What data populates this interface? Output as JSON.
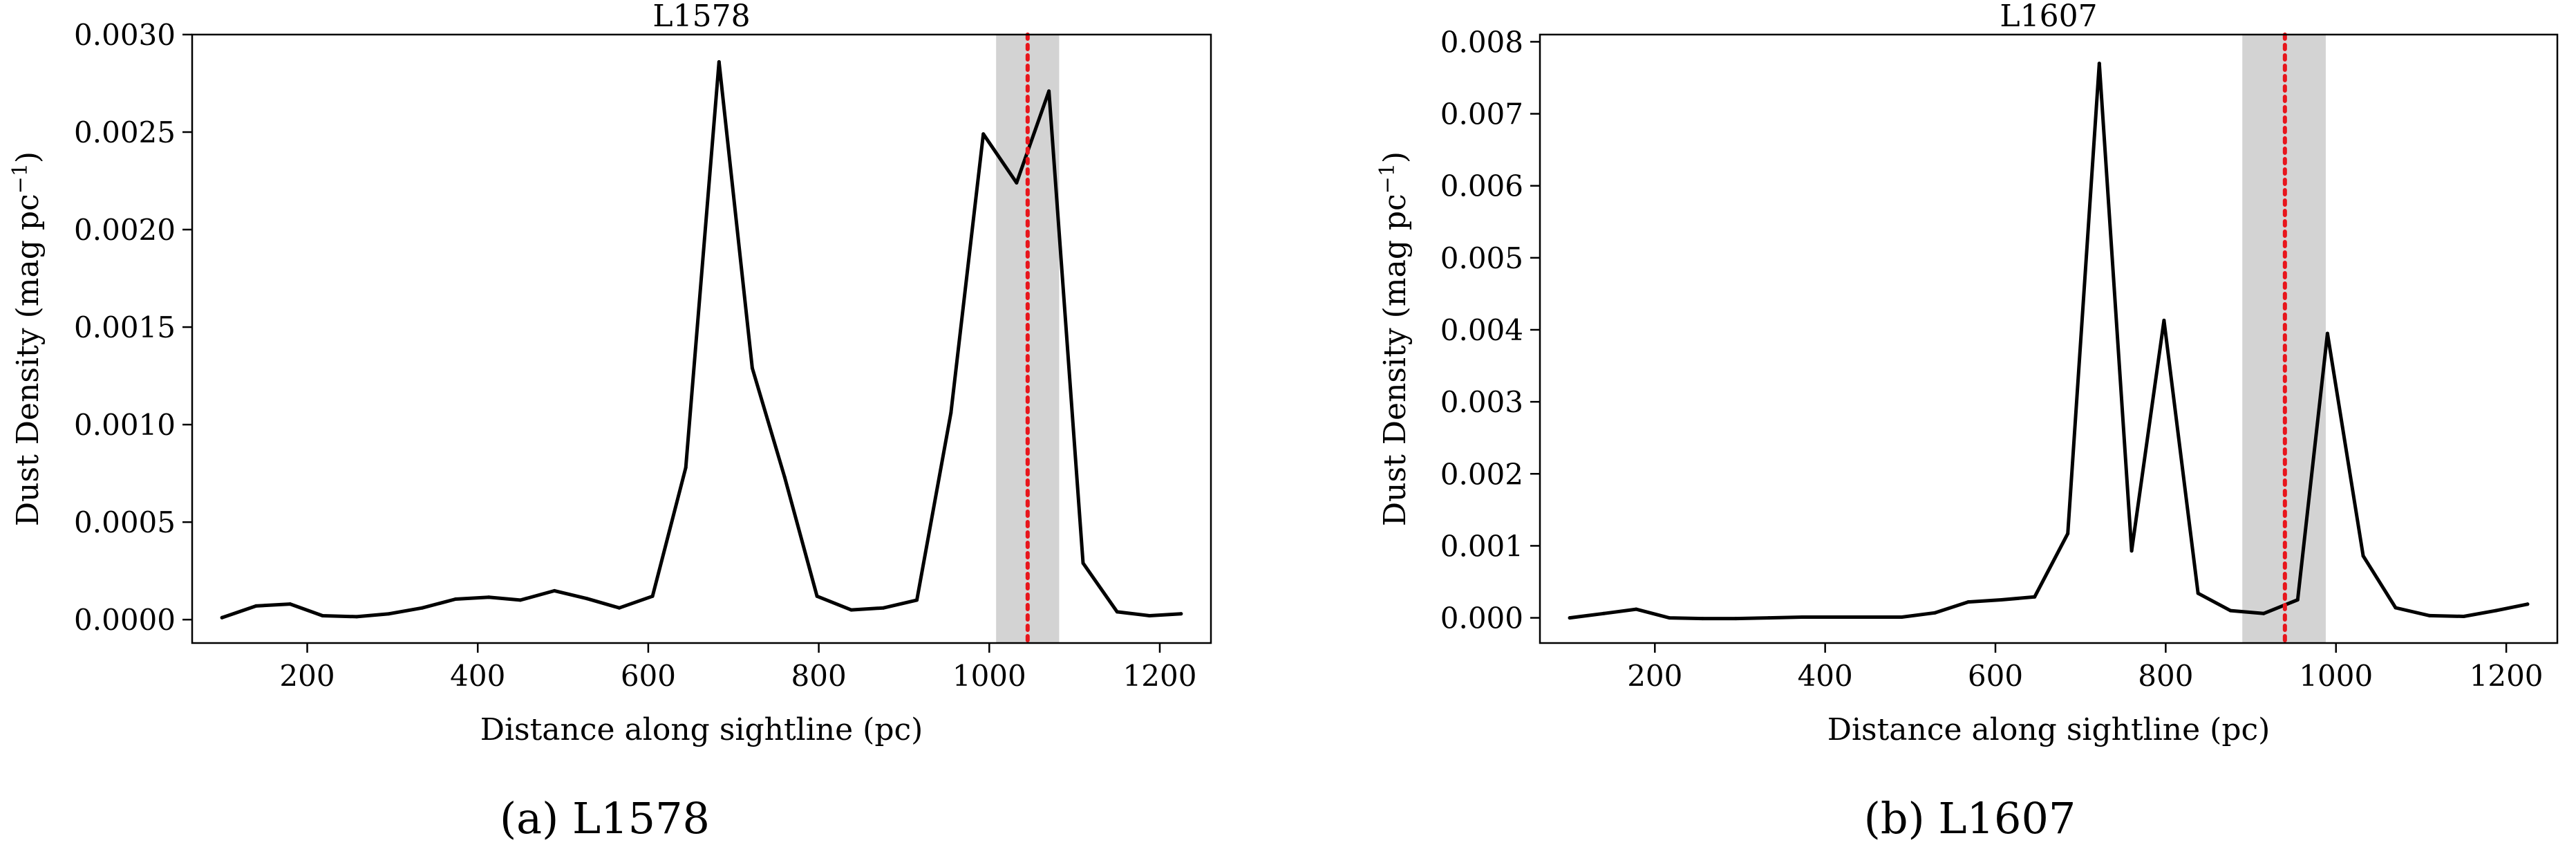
{
  "chart_data": [
    {
      "type": "line",
      "title": "L1578",
      "caption": "(a) L1578",
      "xlabel": "Distance along sightline (pc)",
      "ylabel": "Dust Density (mag pc",
      "ylabel_exp": "−1",
      "ylabel_close": ")",
      "xlim": [
        65,
        1260
      ],
      "ylim": [
        -0.00012,
        0.003
      ],
      "xticks": [
        200,
        400,
        600,
        800,
        1000,
        1200
      ],
      "xtick_labels": [
        "200",
        "400",
        "600",
        "800",
        "1000",
        "1200"
      ],
      "yticks": [
        0.0,
        0.0005,
        0.001,
        0.0015,
        0.002,
        0.0025,
        0.003
      ],
      "ytick_labels": [
        "0.0000",
        "0.0005",
        "0.0010",
        "0.0015",
        "0.0020",
        "0.0025",
        "0.0030"
      ],
      "grid": false,
      "line_color": "#000000",
      "band": {
        "x0": 1008,
        "x1": 1082,
        "color": "#d3d3d3"
      },
      "marker_line": {
        "x": 1045,
        "color": "#e8151b",
        "style": "dotted"
      },
      "series": [
        {
          "x": [
            100,
            140,
            180,
            218,
            258,
            296,
            335,
            374,
            413,
            450,
            490,
            528,
            566,
            605,
            644,
            683,
            722,
            760,
            798,
            838,
            876,
            915,
            955,
            993,
            1032,
            1070,
            1110,
            1150,
            1188,
            1225
          ],
          "y": [
            1e-05,
            7e-05,
            8e-05,
            2e-05,
            1.5e-05,
            3e-05,
            6e-05,
            0.000105,
            0.000115,
            0.0001,
            0.000148,
            0.000108,
            6e-05,
            0.00012,
            0.00078,
            0.00286,
            0.00129,
            0.00073,
            0.00012,
            5e-05,
            6e-05,
            0.0001,
            0.00106,
            0.00249,
            0.00224,
            0.00271,
            0.00029,
            4e-05,
            2e-05,
            3e-05
          ]
        }
      ]
    },
    {
      "type": "line",
      "title": "L1607",
      "caption": "(b) L1607",
      "xlabel": "Distance along sightline (pc)",
      "ylabel": "Dust Density (mag pc",
      "ylabel_exp": "−1",
      "ylabel_close": ")",
      "xlim": [
        65,
        1260
      ],
      "ylim": [
        -0.00035,
        0.0081
      ],
      "xticks": [
        200,
        400,
        600,
        800,
        1000,
        1200
      ],
      "xtick_labels": [
        "200",
        "400",
        "600",
        "800",
        "1000",
        "1200"
      ],
      "yticks": [
        0.0,
        0.001,
        0.002,
        0.003,
        0.004,
        0.005,
        0.006,
        0.007,
        0.008
      ],
      "ytick_labels": [
        "0.000",
        "0.001",
        "0.002",
        "0.003",
        "0.004",
        "0.005",
        "0.006",
        "0.007",
        "0.008"
      ],
      "grid": false,
      "line_color": "#000000",
      "band": {
        "x0": 890,
        "x1": 988,
        "color": "#d3d3d3"
      },
      "marker_line": {
        "x": 940,
        "color": "#e8151b",
        "style": "dotted"
      },
      "series": [
        {
          "x": [
            100,
            140,
            178,
            217,
            256,
            295,
            334,
            373,
            412,
            451,
            490,
            529,
            568,
            607,
            646,
            685,
            722,
            760,
            798,
            838,
            876,
            915,
            955,
            990,
            1032,
            1070,
            1110,
            1150,
            1188,
            1225
          ],
          "y": [
            0.0,
            6e-05,
            0.00012,
            0.0,
            -1e-05,
            -1e-05,
            0.0,
            1e-05,
            1e-05,
            1e-05,
            1e-05,
            7e-05,
            0.00022,
            0.00025,
            0.00029,
            0.00117,
            0.0077,
            0.00093,
            0.00413,
            0.00034,
            0.0001,
            6e-05,
            0.00025,
            0.00395,
            0.00086,
            0.00014,
            3e-05,
            2e-05,
            0.0001,
            0.00019
          ]
        }
      ]
    }
  ]
}
